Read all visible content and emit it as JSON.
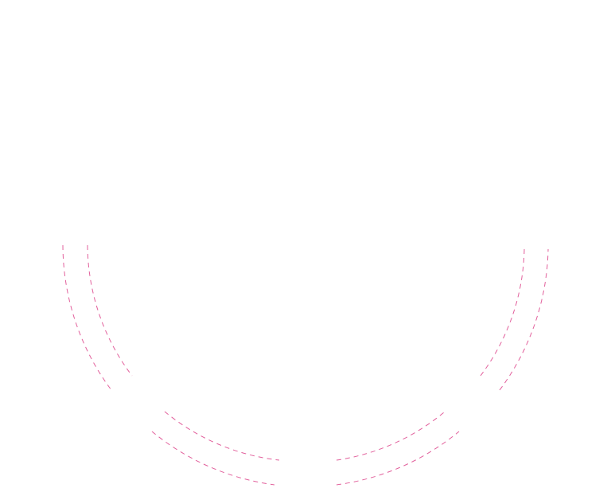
{
  "arcs": {
    "stroke_color": "#e2609c",
    "style": "dashed"
  }
}
